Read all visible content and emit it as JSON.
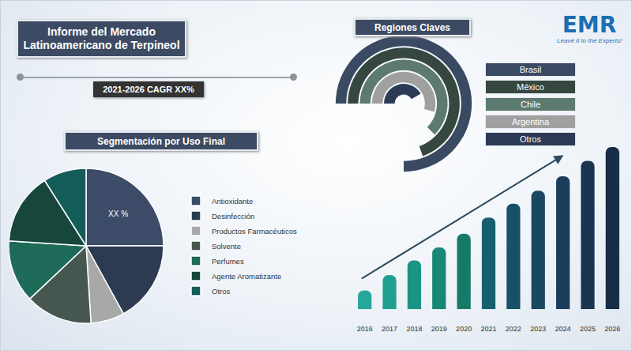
{
  "title": "Informe del Mercado Latinoamericano de Terpineol",
  "cagr_label": "2021-2026 CAGR XX%",
  "logo": {
    "text": "EMR",
    "tagline": "Leave it to the Experts!"
  },
  "chart_data": [
    {
      "type": "pie",
      "title": "Segmentación por Uso Final",
      "categories": [
        "Antioxidante",
        "Desinfección",
        "Productos Farmacéuticos",
        "Solvente",
        "Perfumes",
        "Agente Aromatizante",
        "Otros"
      ],
      "values": [
        25,
        17,
        7,
        14,
        13,
        15,
        9
      ],
      "colors": [
        "#3b4b68",
        "#2c3a52",
        "#a8a8a8",
        "#465750",
        "#1f6b5a",
        "#17463d",
        "#145c5a"
      ],
      "legend": "right",
      "annotations": [
        {
          "category": "Antioxidante",
          "text": "XX %"
        }
      ]
    },
    {
      "type": "radial_bar",
      "title": "Regiones Claves",
      "categories": [
        "Brasil",
        "México",
        "Chile",
        "Argentina",
        "Otros"
      ],
      "values": [
        270,
        250,
        225,
        195,
        150
      ],
      "colors": [
        "#3b4a63",
        "#36473f",
        "#5d7a70",
        "#a0a0a0",
        "#2b3a55"
      ],
      "legend": "right",
      "tick_labels": false
    },
    {
      "type": "bar",
      "categories": [
        "2016",
        "2017",
        "2018",
        "2019",
        "2020",
        "2021",
        "2022",
        "2023",
        "2024",
        "2025",
        "2026"
      ],
      "values": [
        23,
        42,
        60,
        76,
        93,
        113,
        130,
        146,
        164,
        183,
        200
      ],
      "colors": [
        "#27a79b",
        "#21a091",
        "#1b9483",
        "#178776",
        "#157b68",
        "#175f6f",
        "#185167",
        "#1a4761",
        "#1b3d59",
        "#1a3550",
        "#172c45"
      ],
      "ylim": [
        0,
        200
      ],
      "tick_labels": "x"
    }
  ]
}
